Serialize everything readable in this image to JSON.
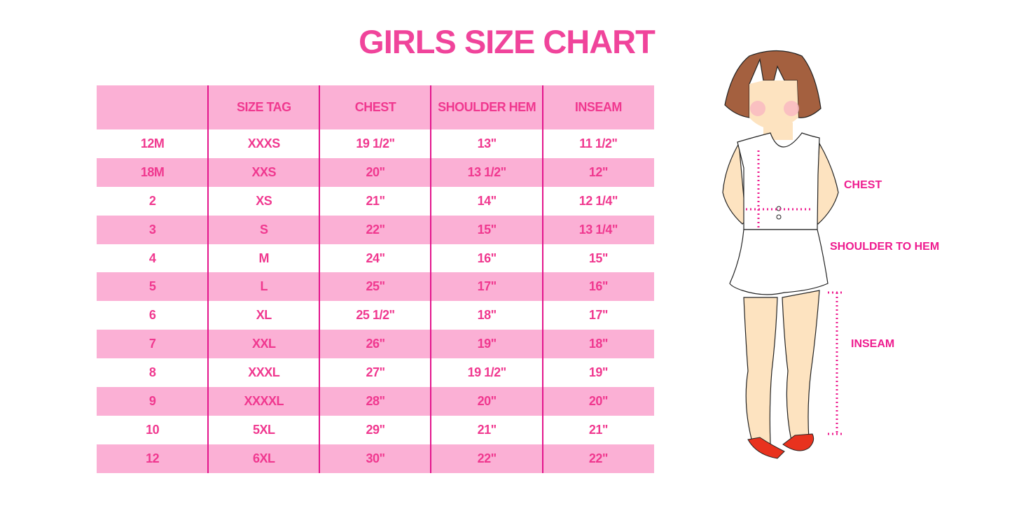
{
  "title": "GIRLS SIZE CHART",
  "table": {
    "headers": [
      "",
      "SIZE TAG",
      "CHEST",
      "SHOULDER HEM",
      "INSEAM"
    ],
    "rows": [
      [
        "12M",
        "XXXS",
        "19 1/2\"",
        "13\"",
        "11 1/2\""
      ],
      [
        "18M",
        "XXS",
        "20\"",
        "13 1/2\"",
        "12\""
      ],
      [
        "2",
        "XS",
        "21\"",
        "14\"",
        "12 1/4\""
      ],
      [
        "3",
        "S",
        "22\"",
        "15\"",
        "13 1/4\""
      ],
      [
        "4",
        "M",
        "24\"",
        "16\"",
        "15\""
      ],
      [
        "5",
        "L",
        "25\"",
        "17\"",
        "16\""
      ],
      [
        "6",
        "XL",
        "25 1/2\"",
        "18\"",
        "17\""
      ],
      [
        "7",
        "XXL",
        "26\"",
        "19\"",
        "18\""
      ],
      [
        "8",
        "XXXL",
        "27\"",
        "19 1/2\"",
        "19\""
      ],
      [
        "9",
        "XXXXL",
        "28\"",
        "20\"",
        "20\""
      ],
      [
        "10",
        "5XL",
        "29\"",
        "21\"",
        "21\""
      ],
      [
        "12",
        "6XL",
        "30\"",
        "22\"",
        "22\""
      ]
    ]
  },
  "diagram": {
    "chest_label": "CHEST",
    "shoulder_label": "SHOULDER TO HEM",
    "inseam_label": "INSEAM"
  },
  "colors": {
    "accent": "#f0388f",
    "row_pink": "#fbb0d5",
    "divider": "#e3158c"
  }
}
